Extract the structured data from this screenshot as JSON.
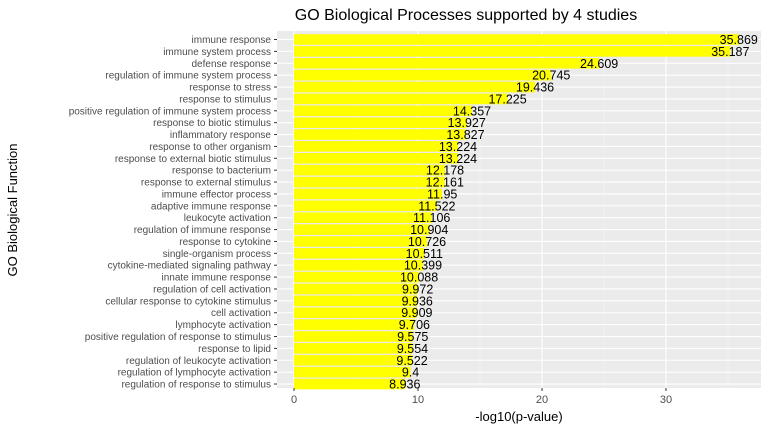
{
  "chart_data": {
    "type": "bar",
    "orientation": "horizontal",
    "title": "GO Biological Processes supported by 4 studies",
    "xlabel": "-log10(p-value)",
    "ylabel": "GO Biological Function",
    "xlim": [
      0,
      37.7
    ],
    "xticks": [
      0,
      10,
      20,
      30
    ],
    "grid": true,
    "bar_color": "#ffff00",
    "panel_color": "#ebebeb",
    "categories": [
      "immune response",
      "immune system process",
      "defense response",
      "regulation of immune system process",
      "response to stress",
      "response to stimulus",
      "positive regulation of immune system process",
      "response to biotic stimulus",
      "inflammatory response",
      "response to other organism",
      "response to external biotic stimulus",
      "response to bacterium",
      "response to external stimulus",
      "immune effector process",
      "adaptive immune response",
      "leukocyte activation",
      "regulation of immune response",
      "response to cytokine",
      "single-organism process",
      "cytokine-mediated signaling pathway",
      "innate immune response",
      "regulation of cell activation",
      "cellular response to cytokine stimulus",
      "cell activation",
      "lymphocyte activation",
      "positive regulation of response to stimulus",
      "response to lipid",
      "regulation of leukocyte activation",
      "regulation of lymphocyte activation",
      "regulation of response to stimulus"
    ],
    "values": [
      35.869,
      35.187,
      24.609,
      20.745,
      19.436,
      17.225,
      14.357,
      13.927,
      13.827,
      13.224,
      13.224,
      12.178,
      12.161,
      11.95,
      11.522,
      11.106,
      10.904,
      10.726,
      10.511,
      10.399,
      10.088,
      9.972,
      9.936,
      9.909,
      9.706,
      9.575,
      9.554,
      9.522,
      9.4,
      8.936
    ],
    "value_labels": [
      "35.869",
      "35.187",
      "24.609",
      "20.745",
      "19.436",
      "17.225",
      "14.357",
      "13.927",
      "13.827",
      "13.224",
      "13.224",
      "12.178",
      "12.161",
      "11.95",
      "11.522",
      "11.106",
      "10.904",
      "10.726",
      "10.511",
      "10.399",
      "10.088",
      "9.972",
      "9.936",
      "9.909",
      "9.706",
      "9.575",
      "9.554",
      "9.522",
      "9.4",
      "8.936"
    ]
  }
}
